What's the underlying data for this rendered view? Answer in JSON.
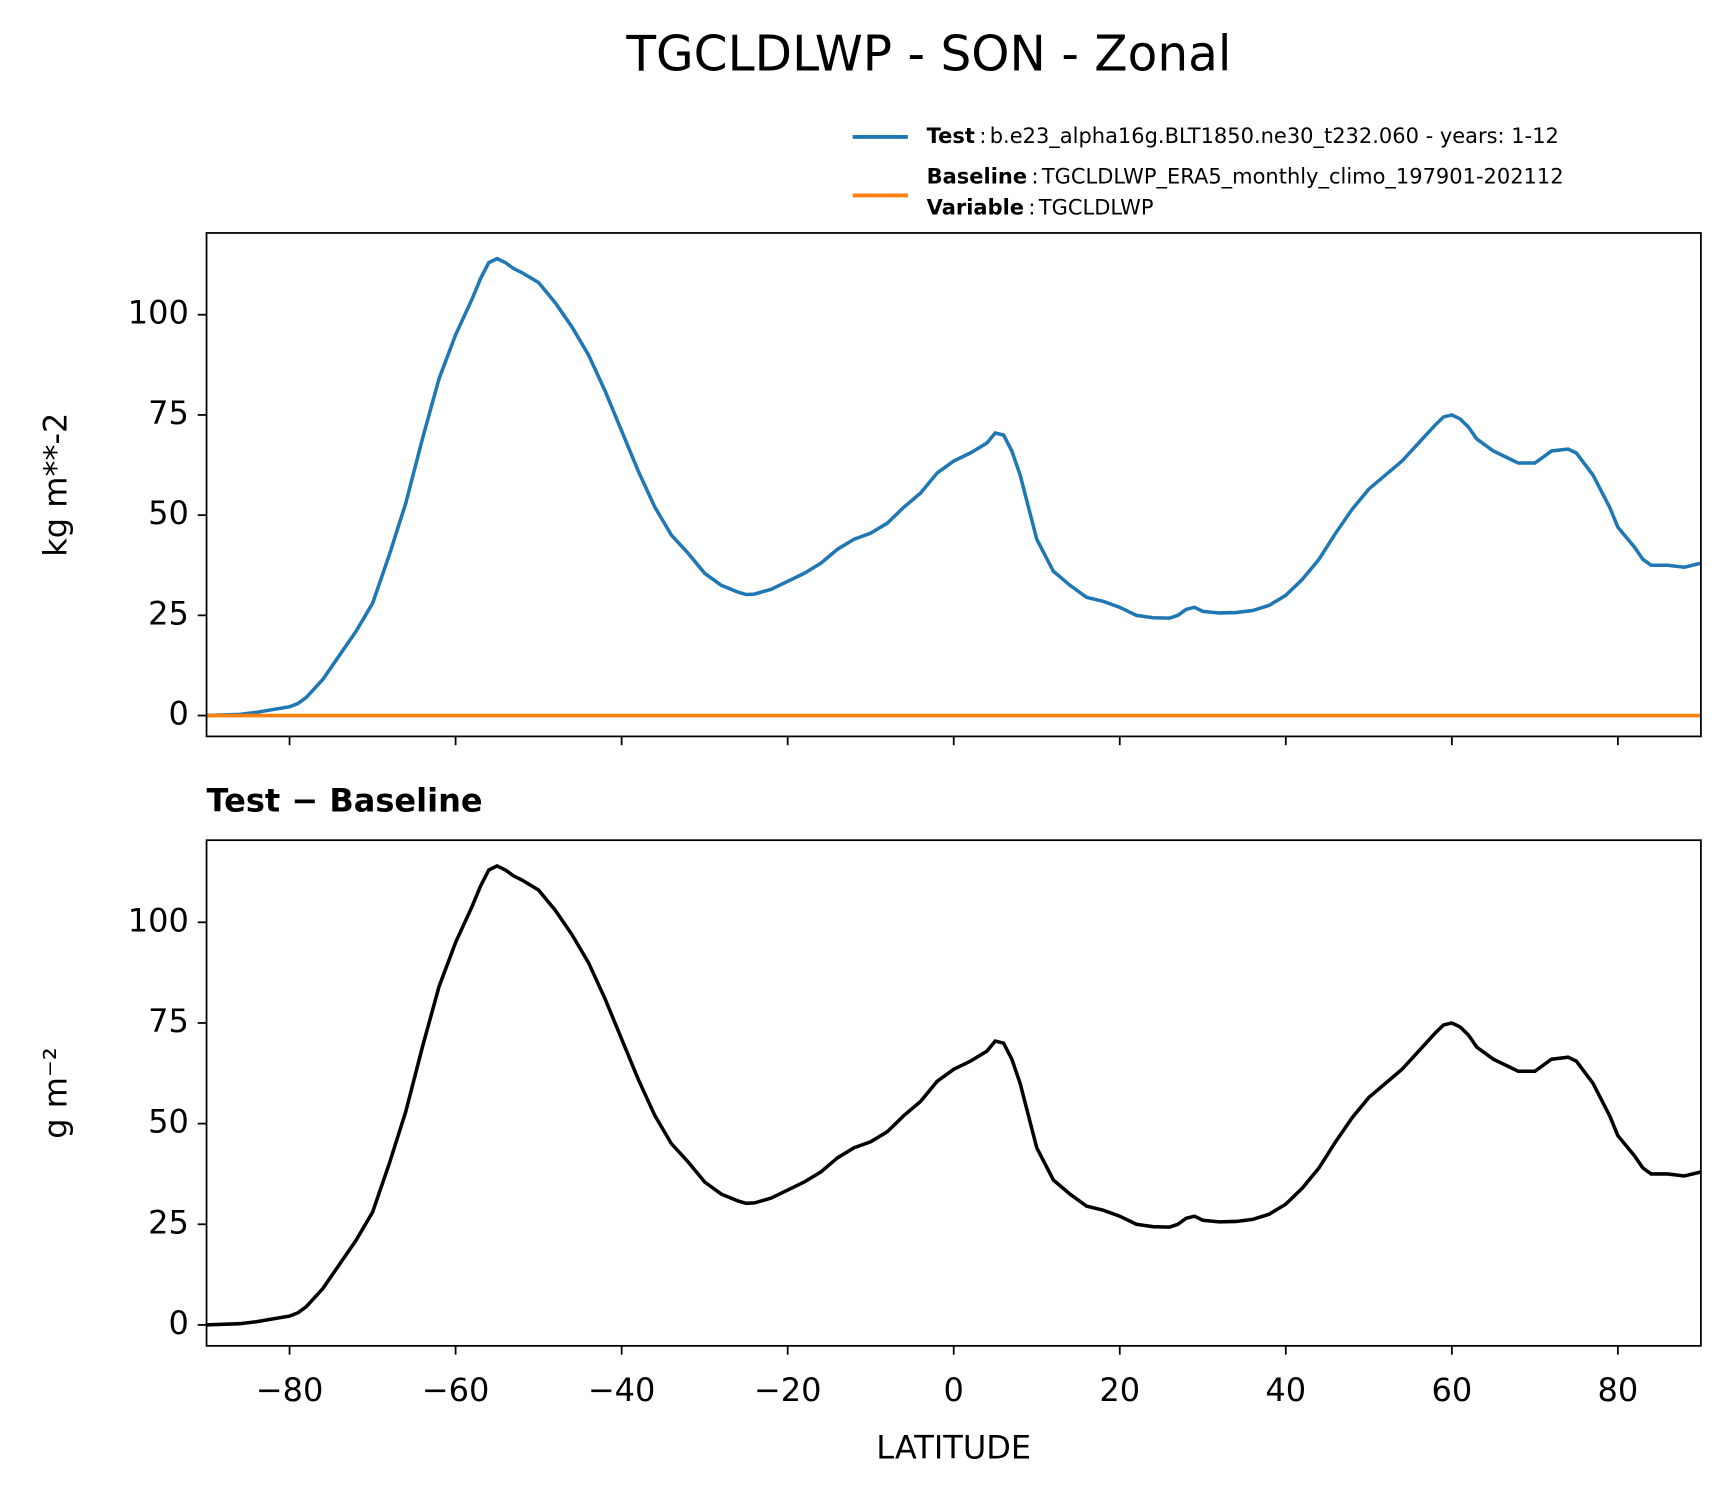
{
  "chart_data": [
    {
      "type": "line",
      "title": "TGCLDLWP - SON - Zonal",
      "ylabel": "kg m**-2",
      "legend": "above",
      "legend_separator": ":",
      "legend_note": {
        "label": "Variable",
        "text": "TGCLDLWP"
      },
      "x": [
        -90,
        -86,
        -84,
        -82,
        -80,
        -79,
        -78,
        -76,
        -74,
        -72,
        -70,
        -68,
        -66,
        -64,
        -62,
        -60,
        -58,
        -57,
        -56,
        -55,
        -54,
        -53,
        -52,
        -50,
        -48,
        -46,
        -44,
        -42,
        -40,
        -38,
        -36,
        -34,
        -32,
        -30,
        -28,
        -26,
        -25,
        -24,
        -22,
        -20,
        -18,
        -16,
        -14,
        -12,
        -10,
        -8,
        -6,
        -4,
        -2,
        0,
        2,
        4,
        5,
        6,
        7,
        8,
        10,
        12,
        14,
        16,
        18,
        20,
        22,
        24,
        26,
        27,
        28,
        29,
        30,
        32,
        34,
        36,
        38,
        40,
        42,
        44,
        46,
        48,
        50,
        52,
        54,
        56,
        58,
        59,
        60,
        61,
        62,
        63,
        65,
        67,
        68,
        70,
        71,
        72,
        74,
        75,
        77,
        79,
        80,
        82,
        83,
        84,
        86,
        88,
        90
      ],
      "series": [
        {
          "name": "Test",
          "description": "b.e23_alpha16g.BLT1850.ne30_t232.060 - years: 1-12",
          "color": "#1f77b4",
          "values": [
            0,
            0.3,
            0.8,
            1.5,
            2.2,
            3,
            4.5,
            9,
            15,
            21,
            28,
            40,
            53,
            69,
            84,
            95,
            104,
            109,
            113,
            114,
            113,
            111.5,
            110.5,
            108,
            103,
            97,
            90,
            81,
            71,
            61,
            52,
            45,
            40.5,
            35.5,
            32.5,
            30.8,
            30.2,
            30.3,
            31.5,
            33.5,
            35.5,
            38,
            41.5,
            44,
            45.5,
            48,
            52,
            55.5,
            60.5,
            63.5,
            65.5,
            68,
            70.5,
            70,
            66,
            60,
            44,
            36,
            32.5,
            29.5,
            28.5,
            27,
            25,
            24.4,
            24.3,
            25,
            26.5,
            27,
            26,
            25.6,
            25.7,
            26.2,
            27.5,
            30,
            34,
            39,
            45.5,
            51.5,
            56.5,
            60,
            63.5,
            68,
            72.5,
            74.5,
            75,
            74,
            72,
            69,
            66,
            64,
            63,
            63,
            64.5,
            66,
            66.5,
            65.5,
            60,
            52,
            47,
            42,
            39,
            37.5,
            37.5,
            37,
            38
          ]
        },
        {
          "name": "Baseline",
          "description": "TGCLDLWP_ERA5_monthly_climo_197901-202112",
          "color": "#ff7f0e",
          "values": [
            0,
            0,
            0,
            0,
            0,
            0,
            0,
            0,
            0,
            0,
            0,
            0,
            0,
            0,
            0,
            0,
            0,
            0,
            0,
            0,
            0,
            0,
            0,
            0,
            0,
            0,
            0,
            0,
            0,
            0,
            0,
            0,
            0,
            0,
            0,
            0,
            0,
            0,
            0,
            0,
            0,
            0,
            0,
            0,
            0,
            0,
            0,
            0,
            0,
            0,
            0,
            0,
            0,
            0,
            0,
            0,
            0,
            0,
            0,
            0,
            0,
            0,
            0,
            0,
            0,
            0,
            0,
            0,
            0,
            0,
            0,
            0,
            0,
            0,
            0,
            0,
            0,
            0,
            0,
            0,
            0,
            0,
            0,
            0,
            0,
            0,
            0,
            0,
            0,
            0,
            0,
            0,
            0,
            0,
            0,
            0,
            0,
            0,
            0,
            0,
            0,
            0,
            0,
            0,
            0
          ]
        }
      ],
      "xlim": [
        -90,
        90
      ],
      "xticks": [
        -80,
        -60,
        -40,
        -20,
        0,
        20,
        40,
        60,
        80
      ],
      "ylim": [
        -5.2,
        120.4
      ],
      "yticks": [
        0,
        25,
        50,
        75,
        100
      ]
    },
    {
      "type": "line",
      "title": "Test − Baseline",
      "ylabel": "g m⁻²",
      "xlabel": "LATITUDE",
      "x": [
        -90,
        -86,
        -84,
        -82,
        -80,
        -79,
        -78,
        -76,
        -74,
        -72,
        -70,
        -68,
        -66,
        -64,
        -62,
        -60,
        -58,
        -57,
        -56,
        -55,
        -54,
        -53,
        -52,
        -50,
        -48,
        -46,
        -44,
        -42,
        -40,
        -38,
        -36,
        -34,
        -32,
        -30,
        -28,
        -26,
        -25,
        -24,
        -22,
        -20,
        -18,
        -16,
        -14,
        -12,
        -10,
        -8,
        -6,
        -4,
        -2,
        0,
        2,
        4,
        5,
        6,
        7,
        8,
        10,
        12,
        14,
        16,
        18,
        20,
        22,
        24,
        26,
        27,
        28,
        29,
        30,
        32,
        34,
        36,
        38,
        40,
        42,
        44,
        46,
        48,
        50,
        52,
        54,
        56,
        58,
        59,
        60,
        61,
        62,
        63,
        65,
        67,
        68,
        70,
        71,
        72,
        74,
        75,
        77,
        79,
        80,
        82,
        83,
        84,
        86,
        88,
        90
      ],
      "series": [
        {
          "color": "#000000",
          "values": [
            0,
            0.3,
            0.8,
            1.5,
            2.2,
            3,
            4.5,
            9,
            15,
            21,
            28,
            40,
            53,
            69,
            84,
            95,
            104,
            109,
            113,
            114,
            113,
            111.5,
            110.5,
            108,
            103,
            97,
            90,
            81,
            71,
            61,
            52,
            45,
            40.5,
            35.5,
            32.5,
            30.8,
            30.2,
            30.3,
            31.5,
            33.5,
            35.5,
            38,
            41.5,
            44,
            45.5,
            48,
            52,
            55.5,
            60.5,
            63.5,
            65.5,
            68,
            70.5,
            70,
            66,
            60,
            44,
            36,
            32.5,
            29.5,
            28.5,
            27,
            25,
            24.4,
            24.3,
            25,
            26.5,
            27,
            26,
            25.6,
            25.7,
            26.2,
            27.5,
            30,
            34,
            39,
            45.5,
            51.5,
            56.5,
            60,
            63.5,
            68,
            72.5,
            74.5,
            75,
            74,
            72,
            69,
            66,
            64,
            63,
            63,
            64.5,
            66,
            66.5,
            65.5,
            60,
            52,
            47,
            42,
            39,
            37.5,
            37.5,
            37,
            38
          ]
        }
      ],
      "xlim": [
        -90,
        90
      ],
      "xticks": [
        {
          "value": -80,
          "label": "−80"
        },
        {
          "value": -60,
          "label": "−60"
        },
        {
          "value": -40,
          "label": "−40"
        },
        {
          "value": -20,
          "label": "−20"
        },
        0,
        20,
        40,
        60,
        80
      ],
      "ylim": [
        -5.2,
        120.4
      ],
      "yticks": [
        0,
        25,
        50,
        75,
        100
      ]
    }
  ]
}
